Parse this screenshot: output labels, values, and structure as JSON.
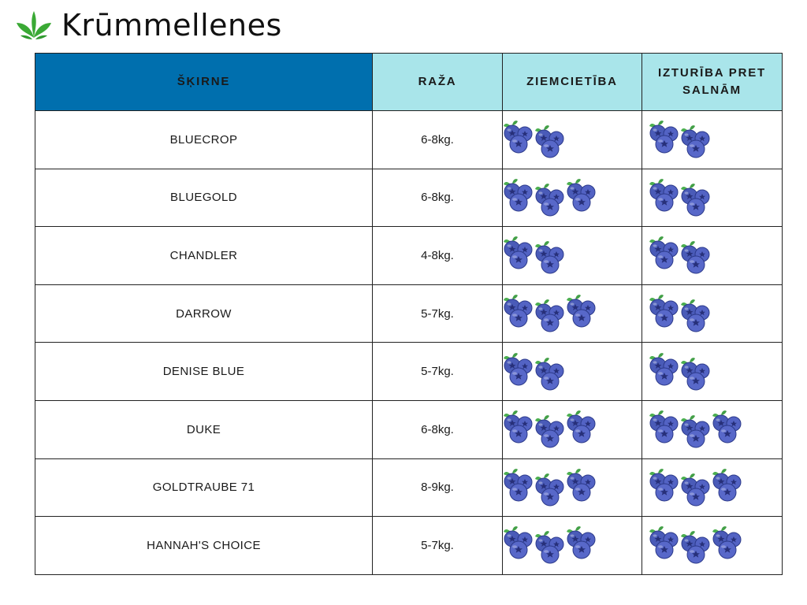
{
  "brand": {
    "title": "Krūmmellenes",
    "logo_icon": "leaf-sprout-icon",
    "logo_color": "#3aa935"
  },
  "table": {
    "columns": [
      "ŠĶIRNE",
      "RAŽA",
      "ZIEMCIETĪBA",
      "IZTURĪBA PRET SALNĀM"
    ],
    "header_colors": {
      "primary": "#006fae",
      "secondary": "#a9e5ea"
    },
    "rating_icon": "blueberry-icon",
    "rows": [
      {
        "name": "BLUECROP",
        "yield": "6-8kg.",
        "frost_hardiness": 2,
        "late_frost_resistance": 2
      },
      {
        "name": "BLUEGOLD",
        "yield": "6-8kg.",
        "frost_hardiness": 3,
        "late_frost_resistance": 2
      },
      {
        "name": "CHANDLER",
        "yield": "4-8kg.",
        "frost_hardiness": 2,
        "late_frost_resistance": 2
      },
      {
        "name": "DARROW",
        "yield": "5-7kg.",
        "frost_hardiness": 3,
        "late_frost_resistance": 2
      },
      {
        "name": "DENISE BLUE",
        "yield": "5-7kg.",
        "frost_hardiness": 2,
        "late_frost_resistance": 2
      },
      {
        "name": "DUKE",
        "yield": "6-8kg.",
        "frost_hardiness": 3,
        "late_frost_resistance": 3
      },
      {
        "name": "GOLDTRAUBE 71",
        "yield": "8-9kg.",
        "frost_hardiness": 3,
        "late_frost_resistance": 3
      },
      {
        "name": "HANNAH'S CHOICE",
        "yield": "5-7kg.",
        "frost_hardiness": 3,
        "late_frost_resistance": 3
      }
    ]
  }
}
